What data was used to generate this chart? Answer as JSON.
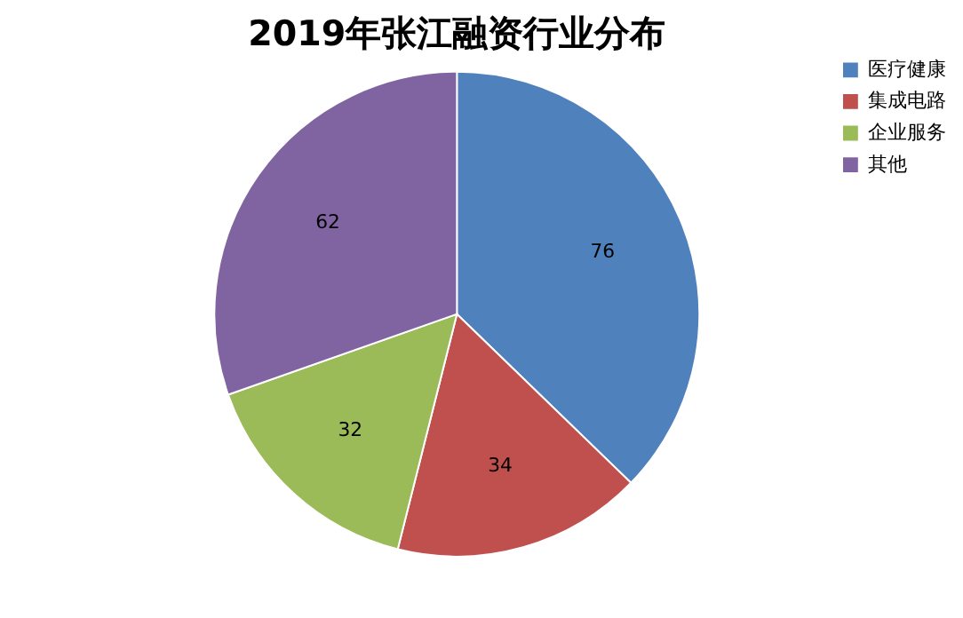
{
  "chart_data": {
    "type": "pie",
    "title": "2019年张江融资行业分布",
    "categories": [
      "医疗健康",
      "集成电路",
      "企业服务",
      "其他"
    ],
    "values": [
      76,
      34,
      32,
      62
    ],
    "colors": [
      "#4f81bd",
      "#c0504d",
      "#9bbb59",
      "#8064a2"
    ],
    "data_labels": true,
    "legend": "right"
  }
}
